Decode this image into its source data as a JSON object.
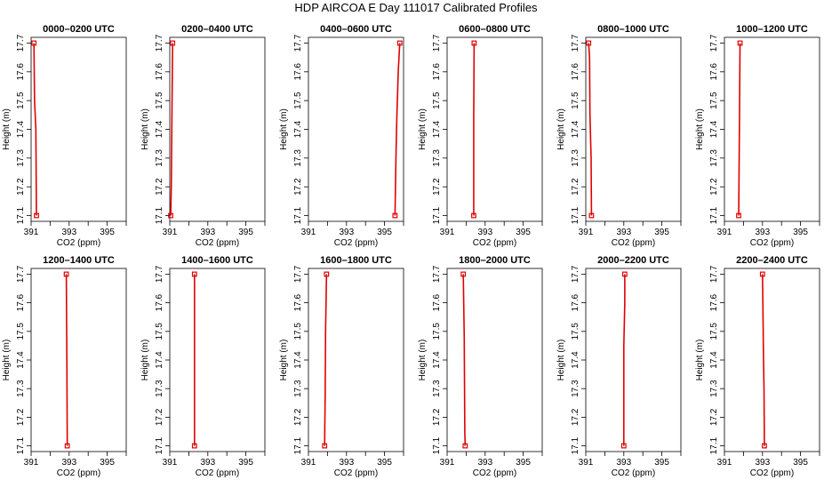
{
  "title": "HDP AIRCOA E  Day 111017  Calibrated Profiles",
  "colors": {
    "profile": "#e00000",
    "frame": "#000000"
  },
  "chart_data": {
    "type": "line",
    "xlabel": "CO2 (ppm)",
    "ylabel": "Height (m)",
    "xlim": [
      391,
      396
    ],
    "ylim": [
      17.08,
      17.72
    ],
    "xticks": [
      "391",
      "393",
      "395"
    ],
    "xtick_values": [
      391,
      392,
      393,
      394,
      395,
      396
    ],
    "yticks": [
      "17.1",
      "17.2",
      "17.3",
      "17.4",
      "17.5",
      "17.6",
      "17.7"
    ],
    "ytick_values": [
      17.1,
      17.2,
      17.3,
      17.4,
      17.5,
      17.6,
      17.7
    ],
    "panels": [
      {
        "title": "0000–0200 UTC",
        "points": [
          [
            391.28,
            17.1
          ],
          [
            391.25,
            17.4
          ],
          [
            391.18,
            17.5
          ],
          [
            391.15,
            17.7
          ]
        ]
      },
      {
        "title": "0200–0400 UTC",
        "points": [
          [
            391.05,
            17.1
          ],
          [
            391.08,
            17.2
          ],
          [
            391.12,
            17.5
          ],
          [
            391.15,
            17.7
          ]
        ]
      },
      {
        "title": "0400–0600 UTC",
        "points": [
          [
            395.55,
            17.1
          ],
          [
            395.6,
            17.3
          ],
          [
            395.65,
            17.45
          ],
          [
            395.72,
            17.6
          ],
          [
            395.8,
            17.7
          ]
        ]
      },
      {
        "title": "0600–0800 UTC",
        "points": [
          [
            392.4,
            17.1
          ],
          [
            392.4,
            17.45
          ],
          [
            392.42,
            17.7
          ]
        ]
      },
      {
        "title": "0800–1000 UTC",
        "points": [
          [
            391.3,
            17.1
          ],
          [
            391.28,
            17.3
          ],
          [
            391.22,
            17.45
          ],
          [
            391.2,
            17.65
          ],
          [
            391.15,
            17.7
          ]
        ]
      },
      {
        "title": "1000–1200 UTC",
        "points": [
          [
            391.75,
            17.1
          ],
          [
            391.78,
            17.35
          ],
          [
            391.82,
            17.7
          ]
        ]
      },
      {
        "title": "1200–1400 UTC",
        "points": [
          [
            392.9,
            17.1
          ],
          [
            392.88,
            17.4
          ],
          [
            392.85,
            17.7
          ]
        ]
      },
      {
        "title": "1400–1600 UTC",
        "points": [
          [
            392.3,
            17.1
          ],
          [
            392.3,
            17.4
          ],
          [
            392.3,
            17.7
          ]
        ]
      },
      {
        "title": "1600–1800 UTC",
        "points": [
          [
            391.85,
            17.1
          ],
          [
            391.88,
            17.28
          ],
          [
            391.9,
            17.5
          ],
          [
            391.95,
            17.7
          ]
        ]
      },
      {
        "title": "1800–2000 UTC",
        "points": [
          [
            391.95,
            17.1
          ],
          [
            391.93,
            17.15
          ],
          [
            391.9,
            17.48
          ],
          [
            391.85,
            17.7
          ]
        ]
      },
      {
        "title": "2000–2200 UTC",
        "points": [
          [
            393.0,
            17.1
          ],
          [
            393.0,
            17.45
          ],
          [
            393.05,
            17.6
          ],
          [
            393.05,
            17.7
          ]
        ]
      },
      {
        "title": "2200–2400 UTC",
        "points": [
          [
            393.1,
            17.1
          ],
          [
            393.08,
            17.3
          ],
          [
            393.05,
            17.42
          ],
          [
            393.02,
            17.6
          ],
          [
            393.0,
            17.7
          ]
        ]
      }
    ]
  }
}
